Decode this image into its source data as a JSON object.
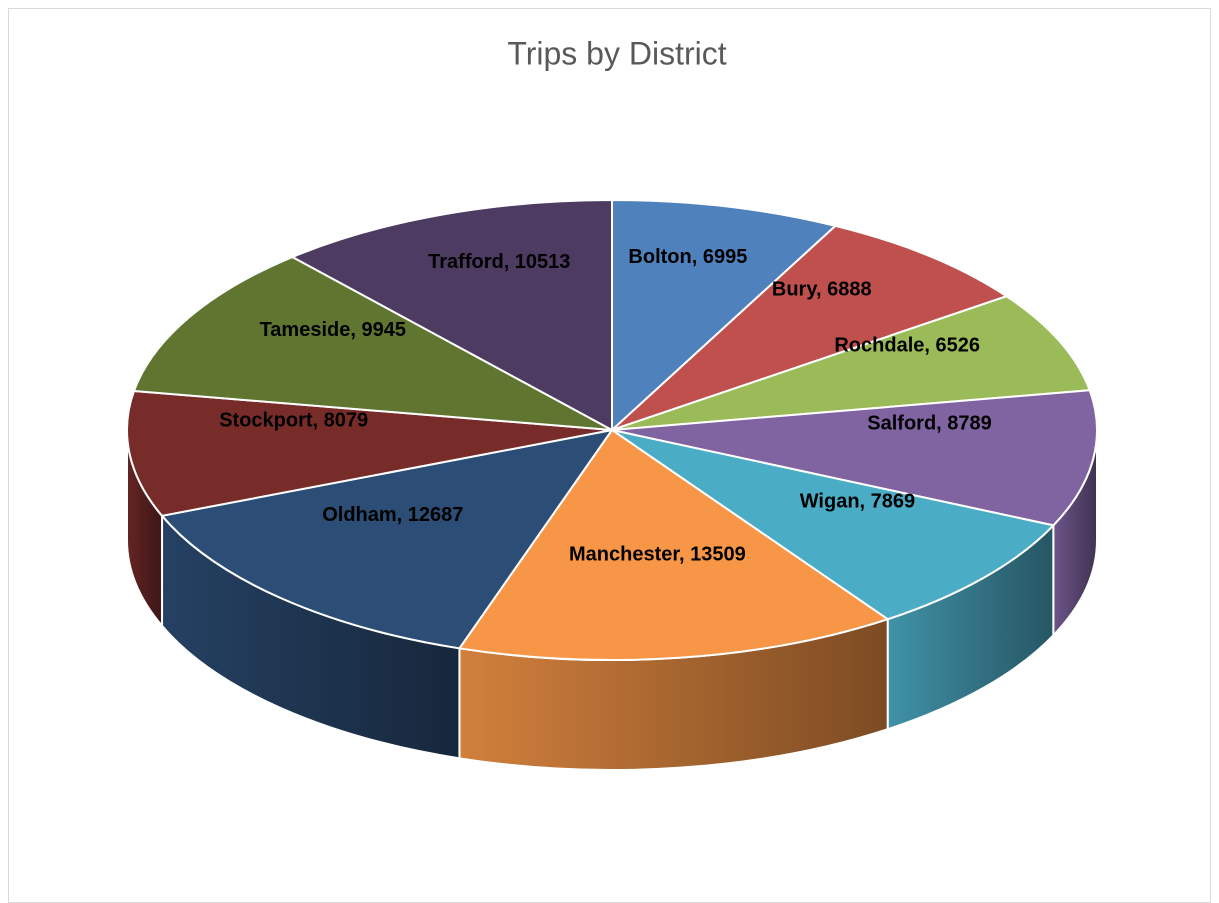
{
  "chart_data": {
    "type": "pie",
    "title": "Trips by District",
    "categories": [
      "Bolton",
      "Bury",
      "Rochdale",
      "Salford",
      "Wigan",
      "Manchester",
      "Oldham",
      "Stockport",
      "Tameside",
      "Trafford"
    ],
    "values": [
      6995,
      6888,
      6526,
      8789,
      7869,
      13509,
      12687,
      8079,
      9945,
      10513
    ],
    "value_labels": [
      "Bolton, 6995",
      "Bury, 6888",
      "Rochdale, 6526",
      "Salford, 8789",
      "Wigan, 7869",
      "Manchester, 13509",
      "Oldham, 12687",
      "Stockport, 8079",
      "Tameside, 9945",
      "Trafford, 10513"
    ],
    "colors": [
      "#4f81bd",
      "#c0504d",
      "#9bbb59",
      "#8064a2",
      "#4bacc6",
      "#f79646",
      "#2c4d75",
      "#772c2a",
      "#5f7530",
      "#4d3b62"
    ]
  }
}
